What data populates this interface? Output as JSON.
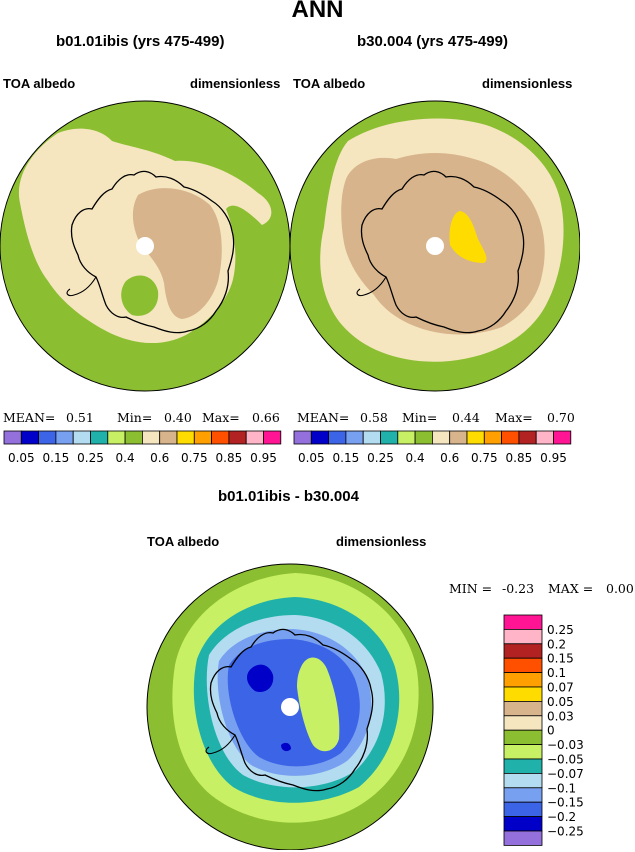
{
  "main_title": "ANN",
  "colors": {
    "c_lavender": "#9370db",
    "c_darkblue": "#0000c8",
    "c_blue": "#3c64e6",
    "c_cornflower": "#78a0f0",
    "c_lightblue": "#b4dcf0",
    "c_teal": "#20b2aa",
    "c_lightgreen": "#c8f064",
    "c_green": "#8cbe32",
    "c_wheat": "#f5e6c0",
    "c_tan": "#d7b48c",
    "c_gold": "#ffdc00",
    "c_orange": "#ffa000",
    "c_red_orange": "#ff5000",
    "c_firebrick": "#b22222",
    "c_pink": "#ffb4c8",
    "c_magenta": "#ff1493",
    "outline": "#000000"
  },
  "panels": [
    {
      "title": "b01.01ibis (yrs 475-499)",
      "left_label": "TOA albedo",
      "right_label": "dimensionless",
      "mean_label": "MEAN=",
      "mean_value": "0.51",
      "min_label": "Min=",
      "min_value": "0.40",
      "max_label": "Max=",
      "max_value": "0.66"
    },
    {
      "title": "b30.004 (yrs 475-499)",
      "left_label": "TOA albedo",
      "right_label": "dimensionless",
      "mean_label": "MEAN=",
      "mean_value": "0.58",
      "min_label": "Min=",
      "min_value": "0.44",
      "max_label": "Max=",
      "max_value": "0.70"
    },
    {
      "title": "b01.01ibis - b30.004",
      "left_label": "TOA albedo",
      "right_label": "dimensionless",
      "min_label": "MIN =",
      "min_value": "-0.23",
      "max_label": "MAX =",
      "max_value": "0.00"
    }
  ],
  "chart_data": [
    {
      "type": "heatmap",
      "title": "b01.01ibis (yrs 475-499)",
      "variable": "TOA albedo",
      "units": "dimensionless",
      "projection": "south polar stereographic",
      "stats": {
        "mean": 0.51,
        "min": 0.4,
        "max": 0.66
      },
      "levels": [
        0.05,
        0.15,
        0.25,
        0.4,
        0.6,
        0.75,
        0.85,
        0.95
      ],
      "level_labels": [
        "0.05",
        "0.15",
        "0.25",
        "0.4",
        "0.6",
        "0.75",
        "0.85",
        "0.95"
      ],
      "level_colors": [
        "#9370db",
        "#0000c8",
        "#3c64e6",
        "#78a0f0",
        "#b4dcf0",
        "#20b2aa",
        "#c8f064",
        "#8cbe32",
        "#f5e6c0",
        "#d7b48c",
        "#ffdc00",
        "#ffa000",
        "#ff5000",
        "#b22222",
        "#ffb4c8",
        "#ff1493"
      ]
    },
    {
      "type": "heatmap",
      "title": "b30.004 (yrs 475-499)",
      "variable": "TOA albedo",
      "units": "dimensionless",
      "projection": "south polar stereographic",
      "stats": {
        "mean": 0.58,
        "min": 0.44,
        "max": 0.7
      },
      "levels": [
        0.05,
        0.15,
        0.25,
        0.4,
        0.6,
        0.75,
        0.85,
        0.95
      ],
      "level_labels": [
        "0.05",
        "0.15",
        "0.25",
        "0.4",
        "0.6",
        "0.75",
        "0.85",
        "0.95"
      ],
      "level_colors": [
        "#9370db",
        "#0000c8",
        "#3c64e6",
        "#78a0f0",
        "#b4dcf0",
        "#20b2aa",
        "#c8f064",
        "#8cbe32",
        "#f5e6c0",
        "#d7b48c",
        "#ffdc00",
        "#ffa000",
        "#ff5000",
        "#b22222",
        "#ffb4c8",
        "#ff1493"
      ]
    },
    {
      "type": "heatmap",
      "title": "b01.01ibis - b30.004",
      "variable": "TOA albedo",
      "units": "dimensionless",
      "projection": "south polar stereographic",
      "stats": {
        "min": -0.23,
        "max": 0.0
      },
      "levels": [
        -0.25,
        -0.2,
        -0.15,
        -0.1,
        -0.07,
        -0.05,
        -0.03,
        0,
        0.03,
        0.05,
        0.07,
        0.1,
        0.15,
        0.2,
        0.25
      ],
      "level_labels_top_to_bottom": [
        "0.25",
        "0.2",
        "0.15",
        "0.1",
        "0.07",
        "0.05",
        "0.03",
        "0",
        "−0.03",
        "−0.05",
        "−0.07",
        "−0.1",
        "−0.15",
        "−0.2",
        "−0.25"
      ],
      "level_colors_top_to_bottom": [
        "#ff1493",
        "#ffb4c8",
        "#b22222",
        "#ff5000",
        "#ffa000",
        "#ffdc00",
        "#d7b48c",
        "#f5e6c0",
        "#8cbe32",
        "#c8f064",
        "#20b2aa",
        "#b4dcf0",
        "#78a0f0",
        "#3c64e6",
        "#0000c8",
        "#9370db"
      ]
    }
  ]
}
